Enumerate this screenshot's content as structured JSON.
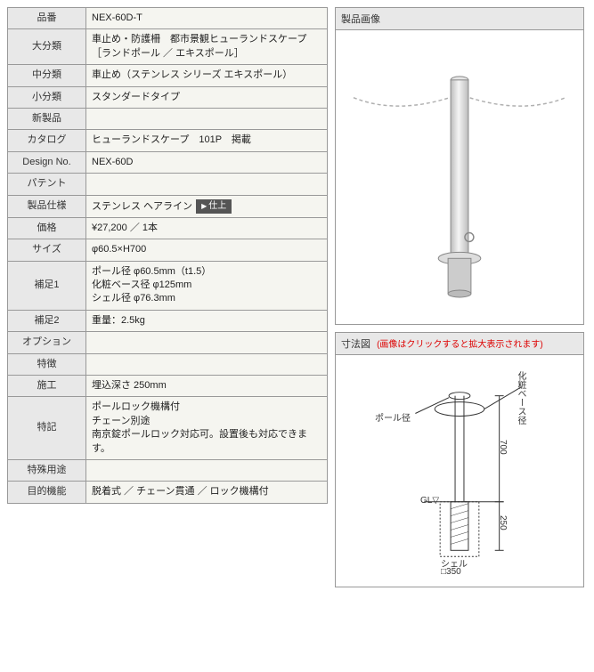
{
  "spec_rows": [
    {
      "label": "品番",
      "value": "NEX-60D-T"
    },
    {
      "label": "大分類",
      "value": "車止め・防護柵　都市景観ヒューランドスケープ［ランドポール ／ エキスポール］"
    },
    {
      "label": "中分類",
      "value": "車止め（ステンレス シリーズ エキスポール）"
    },
    {
      "label": "小分類",
      "value": "スタンダードタイプ"
    },
    {
      "label": "新製品",
      "value": ""
    },
    {
      "label": "カタログ",
      "value": "ヒューランドスケープ　101P　掲載"
    },
    {
      "label": "Design No.",
      "value": "NEX-60D"
    },
    {
      "label": "パテント",
      "value": ""
    },
    {
      "label": "製品仕様",
      "value": "ステンレス ヘアライン",
      "has_shiage": true,
      "shiage_label": "仕上"
    },
    {
      "label": "価格",
      "value": "¥27,200 ／ 1本"
    },
    {
      "label": "サイズ",
      "value": "φ60.5×H700"
    },
    {
      "label": "補足1",
      "value": "ポール径 φ60.5mm（t1.5）\n化粧ベース径 φ125mm\nシェル径 φ76.3mm"
    },
    {
      "label": "補足2",
      "value": "重量：2.5kg"
    },
    {
      "label": "オプション",
      "value": ""
    },
    {
      "label": "特徴",
      "value": ""
    },
    {
      "label": "施工",
      "value": "埋込深さ 250mm"
    },
    {
      "label": "特記",
      "value": "ポールロック機構付\nチェーン別途\n南京錠ポールロック対応可。設置後も対応できます。"
    },
    {
      "label": "特殊用途",
      "value": ""
    },
    {
      "label": "目的機能",
      "value": "脱着式 ／ チェーン貫通 ／ ロック機構付"
    }
  ],
  "panels": {
    "product": {
      "title": "製品画像"
    },
    "dimensions": {
      "title": "寸法図",
      "note": "(画像はクリックすると拡大表示されます)",
      "labels": {
        "pole_dia": "ポール径",
        "base_dia": "化粧ベース径",
        "shell": "シェル",
        "gl": "GL▽",
        "h700": "700",
        "h250": "250",
        "w350": "□350"
      }
    }
  },
  "colors": {
    "border": "#999999",
    "header_bg": "#e8e8e8",
    "cell_bg": "#f5f5f0",
    "note_red": "#dd0000",
    "pole_fill": "#d8d8d8",
    "pole_stroke": "#888888",
    "chain": "#b0b0b0",
    "accent_yellow": "#e6c84a"
  }
}
